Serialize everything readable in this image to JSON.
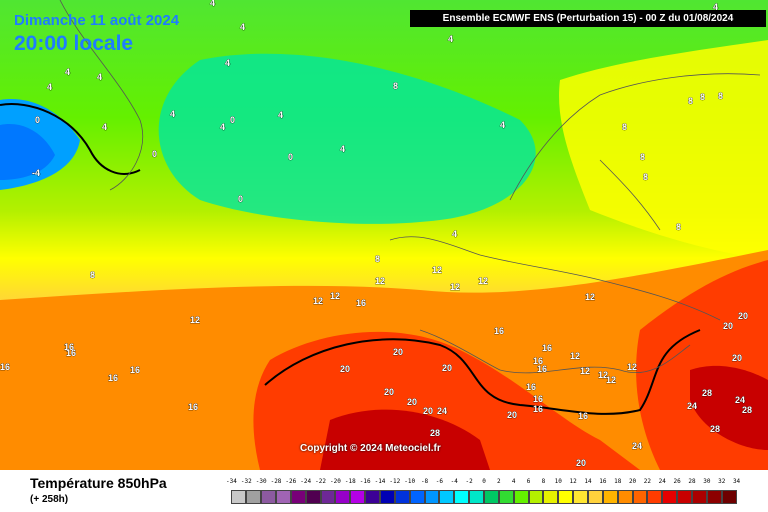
{
  "header": {
    "date": "Dimanche 11 août 2024",
    "time": "20:00 locale",
    "run": "Ensemble ECMWF ENS  (Perturbation 15)  -  00 Z du 01/08/2024"
  },
  "copyright": "Copyright © 2024 Meteociel.fr",
  "footer": {
    "parameter": "Température 850hPa",
    "lead_time": "(+ 258h)"
  },
  "legend": {
    "values": [
      "-34",
      "-32",
      "-30",
      "-28",
      "-26",
      "-24",
      "-22",
      "-20",
      "-18",
      "-16",
      "-14",
      "-12",
      "-10",
      "-8",
      "-6",
      "-4",
      "-2",
      "0",
      "2",
      "4",
      "6",
      "8",
      "10",
      "12",
      "14",
      "16",
      "18",
      "20",
      "22",
      "24",
      "26",
      "28",
      "30",
      "32",
      "34"
    ],
    "colors": [
      "#c8c8c8",
      "#a0a0a0",
      "#8c5aa0",
      "#a064b4",
      "#780078",
      "#500050",
      "#6e2896",
      "#9600c8",
      "#b400e6",
      "#3c0096",
      "#0000b4",
      "#0032dc",
      "#0064ff",
      "#0096ff",
      "#00c8ff",
      "#00ffff",
      "#00e6c8",
      "#00c864",
      "#32dc32",
      "#64f000",
      "#b4f000",
      "#e6f000",
      "#ffff00",
      "#ffe632",
      "#ffd23c",
      "#ffb400",
      "#ff8c00",
      "#ff6400",
      "#ff3c00",
      "#e60000",
      "#c80000",
      "#aa0000",
      "#8c0000",
      "#6e0000"
    ]
  },
  "map_labels": [
    {
      "text": "4"
    },
    {
      "text": "4"
    },
    {
      "text": "4"
    },
    {
      "text": "4"
    },
    {
      "text": "4"
    },
    {
      "text": "4"
    },
    {
      "text": "4"
    },
    {
      "text": "4"
    },
    {
      "text": "4"
    },
    {
      "text": "4"
    },
    {
      "text": "4"
    },
    {
      "text": "4"
    },
    {
      "text": "4"
    },
    {
      "text": "4"
    },
    {
      "text": "4"
    },
    {
      "text": "0"
    },
    {
      "text": "0"
    },
    {
      "text": "0"
    },
    {
      "text": "0"
    },
    {
      "text": "0"
    },
    {
      "text": "-4"
    },
    {
      "text": "8"
    },
    {
      "text": "8"
    },
    {
      "text": "8"
    },
    {
      "text": "8"
    },
    {
      "text": "8"
    },
    {
      "text": "8"
    },
    {
      "text": "8"
    },
    {
      "text": "8"
    },
    {
      "text": "8"
    },
    {
      "text": "8"
    },
    {
      "text": "12"
    },
    {
      "text": "12"
    },
    {
      "text": "12"
    },
    {
      "text": "12"
    },
    {
      "text": "12"
    },
    {
      "text": "12"
    },
    {
      "text": "12"
    },
    {
      "text": "12"
    },
    {
      "text": "12"
    },
    {
      "text": "12"
    },
    {
      "text": "12"
    },
    {
      "text": "12"
    },
    {
      "text": "12"
    },
    {
      "text": "16"
    },
    {
      "text": "16"
    },
    {
      "text": "16"
    },
    {
      "text": "16"
    },
    {
      "text": "16"
    },
    {
      "text": "16"
    },
    {
      "text": "16"
    },
    {
      "text": "16"
    },
    {
      "text": "16"
    },
    {
      "text": "16"
    },
    {
      "text": "16"
    },
    {
      "text": "16"
    },
    {
      "text": "16"
    },
    {
      "text": "16"
    },
    {
      "text": "16"
    },
    {
      "text": "20"
    },
    {
      "text": "20"
    },
    {
      "text": "20"
    },
    {
      "text": "20"
    },
    {
      "text": "20"
    },
    {
      "text": "20"
    },
    {
      "text": "20"
    },
    {
      "text": "20"
    },
    {
      "text": "20"
    },
    {
      "text": "20"
    },
    {
      "text": "20"
    },
    {
      "text": "24"
    },
    {
      "text": "24"
    },
    {
      "text": "24"
    },
    {
      "text": "24"
    },
    {
      "text": "28"
    },
    {
      "text": "28"
    },
    {
      "text": "28"
    },
    {
      "text": "28"
    }
  ]
}
